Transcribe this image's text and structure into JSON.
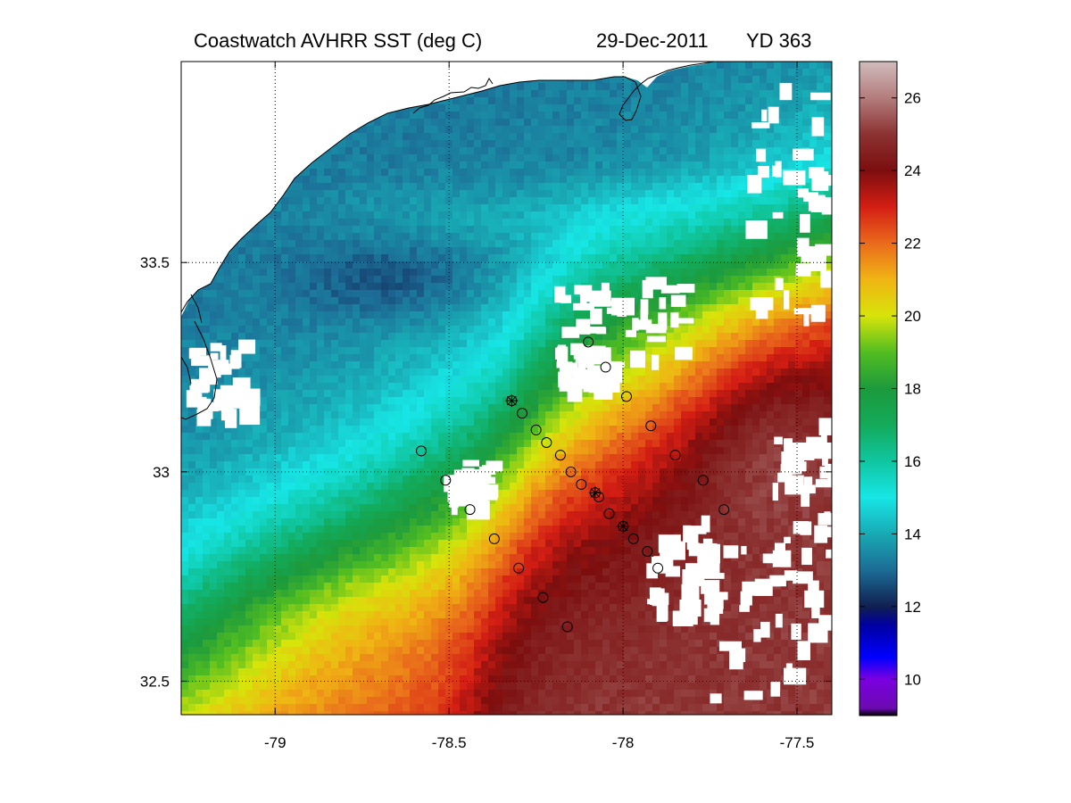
{
  "title": {
    "left": "Coastwatch   AVHRR   SST  (deg C)",
    "date": "29-Dec-2011",
    "yearday": "YD 363"
  },
  "map": {
    "lon_range": [
      -79.27,
      -77.4
    ],
    "lat_range": [
      32.42,
      33.98
    ],
    "x_ticks": [
      {
        "value": -79,
        "label": "-79"
      },
      {
        "value": -78.5,
        "label": "-78.5"
      },
      {
        "value": -78,
        "label": "-78"
      },
      {
        "value": -77.5,
        "label": "-77.5"
      }
    ],
    "y_ticks": [
      {
        "value": 33.5,
        "label": "33.5"
      },
      {
        "value": 33,
        "label": "33"
      },
      {
        "value": 32.5,
        "label": "32.5"
      }
    ],
    "grid": "dotted",
    "land_color": "#ffffff",
    "coastline_color": "#000000"
  },
  "colorbar": {
    "range": [
      9,
      27
    ],
    "ticks": [
      {
        "value": 10,
        "label": "10"
      },
      {
        "value": 12,
        "label": "12"
      },
      {
        "value": 14,
        "label": "14"
      },
      {
        "value": 16,
        "label": "16"
      },
      {
        "value": 18,
        "label": "18"
      },
      {
        "value": 20,
        "label": "20"
      },
      {
        "value": 22,
        "label": "22"
      },
      {
        "value": 24,
        "label": "24"
      },
      {
        "value": 26,
        "label": "26"
      }
    ],
    "colors": [
      {
        "value": 9,
        "color": "#000000"
      },
      {
        "value": 9.2,
        "color": "#6b0bb0"
      },
      {
        "value": 10,
        "color": "#7a00e0"
      },
      {
        "value": 10.6,
        "color": "#0000ff"
      },
      {
        "value": 11.5,
        "color": "#0000a0"
      },
      {
        "value": 12,
        "color": "#102050"
      },
      {
        "value": 13,
        "color": "#1c6c96"
      },
      {
        "value": 14,
        "color": "#18aab4"
      },
      {
        "value": 15,
        "color": "#17e6e6"
      },
      {
        "value": 16,
        "color": "#10c6a0"
      },
      {
        "value": 17,
        "color": "#13aa5a"
      },
      {
        "value": 18,
        "color": "#1d9a3c"
      },
      {
        "value": 19,
        "color": "#52bd20"
      },
      {
        "value": 20,
        "color": "#d7e40a"
      },
      {
        "value": 21,
        "color": "#f0b414"
      },
      {
        "value": 22,
        "color": "#ea6a1c"
      },
      {
        "value": 23,
        "color": "#d41e14"
      },
      {
        "value": 24,
        "color": "#7c0e0e"
      },
      {
        "value": 25,
        "color": "#8c3232"
      },
      {
        "value": 26,
        "color": "#b47c7c"
      },
      {
        "value": 27,
        "color": "#d0bcbc"
      }
    ]
  },
  "stations": [
    {
      "lon": -78.1,
      "lat": 33.31
    },
    {
      "lon": -78.05,
      "lat": 33.25
    },
    {
      "lon": -77.99,
      "lat": 33.18
    },
    {
      "lon": -78.32,
      "lat": 33.17,
      "marker": "asterisk"
    },
    {
      "lon": -78.29,
      "lat": 33.14
    },
    {
      "lon": -78.25,
      "lat": 33.1
    },
    {
      "lon": -78.22,
      "lat": 33.07
    },
    {
      "lon": -78.18,
      "lat": 33.04
    },
    {
      "lon": -78.15,
      "lat": 33
    },
    {
      "lon": -78.12,
      "lat": 32.97
    },
    {
      "lon": -78.08,
      "lat": 32.95,
      "marker": "asterisk"
    },
    {
      "lon": -78.07,
      "lat": 32.94
    },
    {
      "lon": -78.04,
      "lat": 32.9
    },
    {
      "lon": -78.0,
      "lat": 32.87,
      "marker": "asterisk"
    },
    {
      "lon": -77.97,
      "lat": 32.84
    },
    {
      "lon": -77.93,
      "lat": 32.81
    },
    {
      "lon": -77.9,
      "lat": 32.77
    },
    {
      "lon": -77.92,
      "lat": 33.11
    },
    {
      "lon": -77.85,
      "lat": 33.04
    },
    {
      "lon": -77.77,
      "lat": 32.98
    },
    {
      "lon": -77.71,
      "lat": 32.91
    },
    {
      "lon": -78.58,
      "lat": 33.05
    },
    {
      "lon": -78.51,
      "lat": 32.98
    },
    {
      "lon": -78.44,
      "lat": 32.91
    },
    {
      "lon": -78.37,
      "lat": 32.84
    },
    {
      "lon": -78.3,
      "lat": 32.77
    },
    {
      "lon": -78.23,
      "lat": 32.7
    },
    {
      "lon": -78.16,
      "lat": 32.63
    }
  ]
}
